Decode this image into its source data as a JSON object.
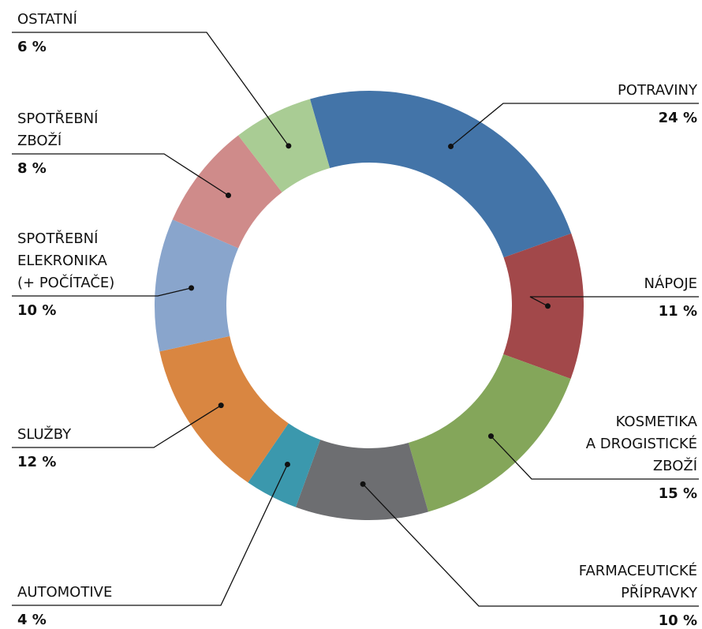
{
  "chart_data": {
    "type": "donut",
    "categories": [
      "POTRAVINY",
      "NÁPOJE",
      "KOSMETIKA\nA DROGISTICKÉ\nZBOŽÍ",
      "FARMACEUTICKÉ\nPŘÍPRAVKY",
      "AUTOMOTIVE",
      "SLUŽBY",
      "SPOTŘEBNÍ\nELEKRONIKA\n(+ POČÍTAČE)",
      "SPOTŘEBNÍ\nZBOŽÍ",
      "OSTATNÍ"
    ],
    "values": [
      24,
      11,
      15,
      10,
      4,
      12,
      10,
      8,
      6
    ],
    "value_labels": [
      "24 %",
      "11 %",
      "15 %",
      "10 %",
      "4 %",
      "12 %",
      "10 %",
      "8 %",
      "6 %"
    ],
    "colors": [
      "#4374a8",
      "#a2484a",
      "#84a65a",
      "#6d6e71",
      "#3b98ad",
      "#d98641",
      "#89a5cc",
      "#cf8b8a",
      "#a9cc94"
    ]
  }
}
